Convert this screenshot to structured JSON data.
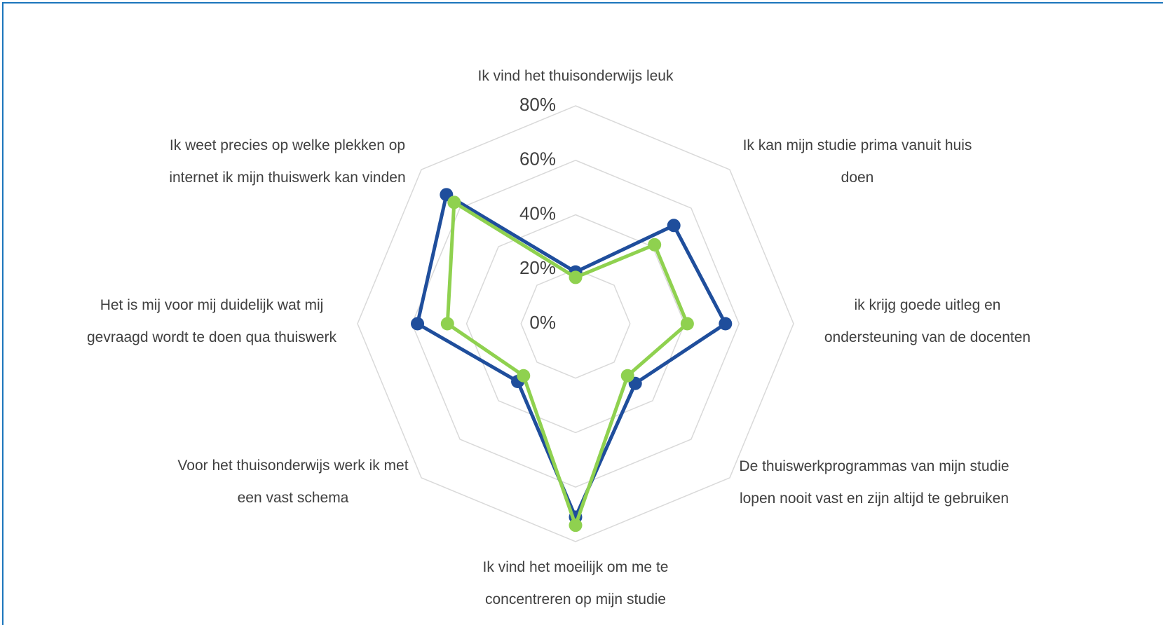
{
  "chart_data": {
    "type": "radar",
    "categories": [
      "Ik vind het thuisonderwijs leuk",
      "Ik kan mijn studie prima vanuit huis doen",
      "ik krijg goede uitleg en ondersteuning van de docenten",
      "De thuiswerkprogrammas van mijn studie lopen nooit vast en zijn altijd te gebruiken",
      "Ik vind het moeilijk om me te concentreren op mijn studie",
      "Voor het thuisonderwijs werk ik met een vast schema",
      "Het is mij voor mij duidelijk wat mij gevraagd wordt te doen qua thuiswerk",
      "Ik weet precies op welke plekken op internet ik mijn thuiswerk kan vinden"
    ],
    "series": [
      {
        "color": "#1f4e9c",
        "values": [
          19,
          51,
          55,
          31,
          71,
          30,
          58,
          67
        ]
      },
      {
        "color": "#8fd14f",
        "values": [
          17,
          41,
          41,
          27,
          74,
          27,
          47,
          63
        ]
      }
    ],
    "ylim": [
      0,
      80
    ],
    "yticks": [
      {
        "value": 0,
        "label": "0%"
      },
      {
        "value": 20,
        "label": "20%"
      },
      {
        "value": 40,
        "label": "40%"
      },
      {
        "value": 60,
        "label": "60%"
      },
      {
        "value": 80,
        "label": "80%"
      }
    ],
    "grid": true
  }
}
